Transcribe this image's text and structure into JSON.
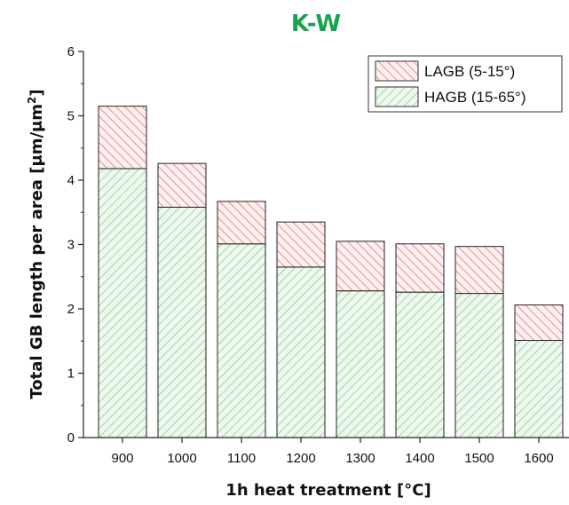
{
  "chart_data": {
    "type": "bar",
    "stacked": true,
    "title": "K-W",
    "xlabel": "1h heat treatment [°C]",
    "ylabel_main": "Total GB length per area [μm/μm",
    "ylabel_sup": "2",
    "ylabel_end": "]",
    "categories": [
      "900",
      "1000",
      "1100",
      "1200",
      "1300",
      "1400",
      "1500",
      "1600"
    ],
    "series": [
      {
        "name": "HAGB (15-65°)",
        "values": [
          4.18,
          3.58,
          3.01,
          2.65,
          2.28,
          2.26,
          2.24,
          1.51
        ],
        "color": "#7cc47a",
        "fill": "#eef8ee"
      },
      {
        "name": "LAGB (5-15°)",
        "values": [
          0.97,
          0.68,
          0.66,
          0.7,
          0.77,
          0.75,
          0.73,
          0.55
        ],
        "color": "#e05a5a",
        "fill": "#fdf0f0"
      }
    ],
    "ylim": [
      0,
      6
    ],
    "yticks": [
      "0",
      "1",
      "2",
      "3",
      "4",
      "5",
      "6"
    ],
    "legend_position": "top-right",
    "grid": false,
    "title_color": "#14a64a"
  }
}
